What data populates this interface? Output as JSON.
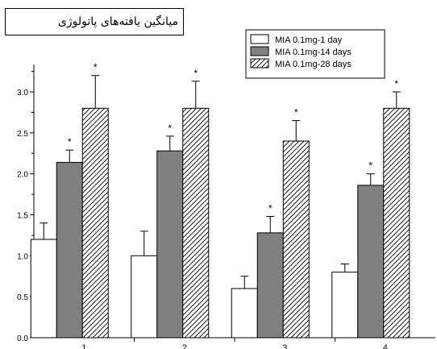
{
  "chart_data": {
    "type": "bar",
    "title": "میانگین یافته‌های پاتولوژی",
    "xlabel": "",
    "ylabel": "",
    "categories": [
      "1",
      "2",
      "3",
      "4"
    ],
    "ylim": [
      0,
      3.3
    ],
    "yticks": [
      "0.0",
      "0.5",
      "1.0",
      "1.5",
      "2.0",
      "2.5",
      "3.0"
    ],
    "legend_position": "top-right",
    "significance_marker": "*",
    "grid": false,
    "series": [
      {
        "name": "MIA 0.1mg-1 day",
        "fill": "white",
        "values": [
          1.2,
          1.0,
          0.6,
          0.8
        ],
        "errors": [
          0.2,
          0.3,
          0.15,
          0.1
        ],
        "significant": [
          false,
          false,
          false,
          false
        ]
      },
      {
        "name": "MIA 0.1mg-14 days",
        "fill": "gray",
        "color": "#808080",
        "values": [
          2.14,
          2.28,
          1.28,
          1.86
        ],
        "errors": [
          0.15,
          0.18,
          0.2,
          0.14
        ],
        "significant": [
          true,
          true,
          true,
          true
        ]
      },
      {
        "name": "MIA 0.1mg-28 days",
        "fill": "hatch",
        "values": [
          2.8,
          2.8,
          2.4,
          2.8
        ],
        "errors": [
          0.4,
          0.33,
          0.25,
          0.2
        ],
        "significant": [
          true,
          true,
          true,
          true
        ]
      }
    ]
  }
}
